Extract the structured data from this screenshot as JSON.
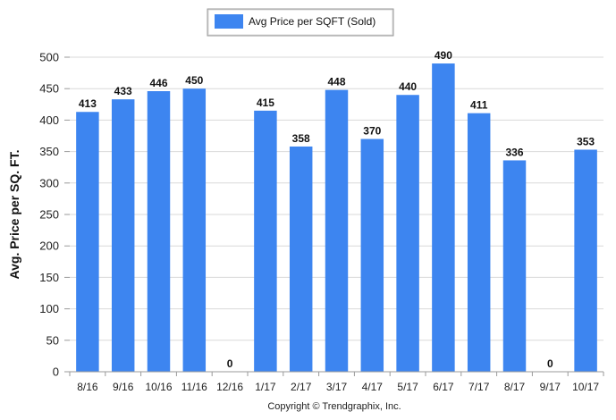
{
  "chart_data": {
    "type": "bar",
    "categories": [
      "8/16",
      "9/16",
      "10/16",
      "11/16",
      "12/16",
      "1/17",
      "2/17",
      "3/17",
      "4/17",
      "5/17",
      "6/17",
      "7/17",
      "8/17",
      "9/17",
      "10/17"
    ],
    "series": [
      {
        "name": "Avg Price per SQFT (Sold)",
        "values": [
          413,
          433,
          446,
          450,
          0,
          415,
          358,
          448,
          370,
          440,
          490,
          411,
          336,
          0,
          353
        ]
      }
    ],
    "ylabel": "Avg. Price per SQ. FT.",
    "xlabel": "",
    "ylim": [
      0,
      500
    ],
    "yticks": [
      0,
      50,
      100,
      150,
      200,
      250,
      300,
      350,
      400,
      450,
      500
    ],
    "grid": true,
    "legend_position": "top-center",
    "bar_color": "#3d85f0",
    "footer": "Copyright © Trendgraphix, Inc."
  }
}
